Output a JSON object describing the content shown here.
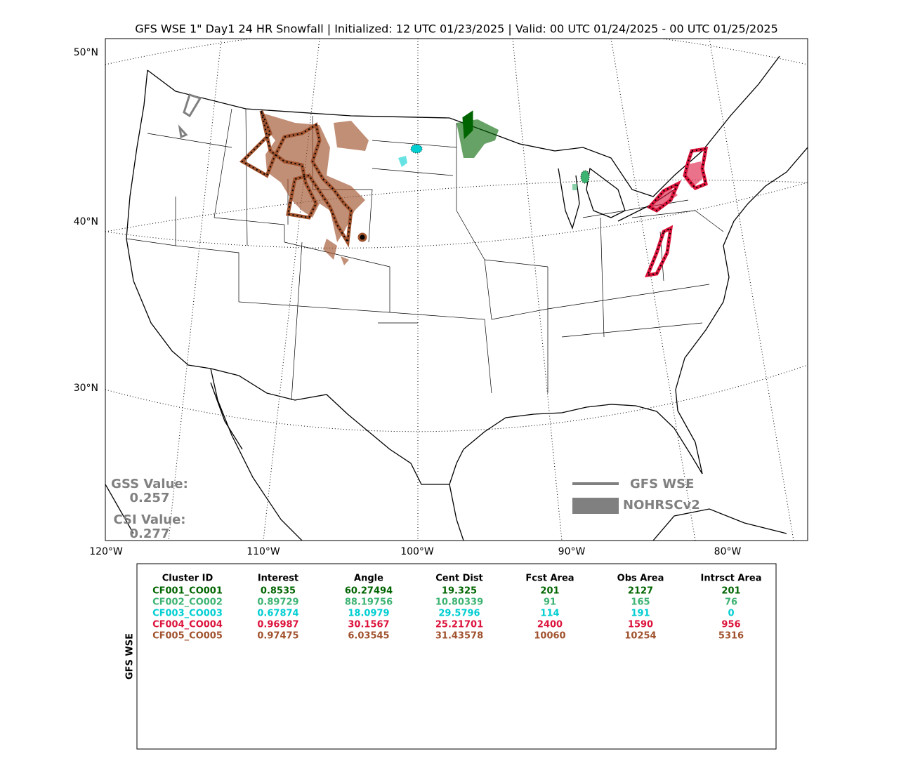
{
  "title": "GFS WSE 1\" Day1 24 HR Snowfall | Initialized: 12 UTC 01/23/2025 | Valid: 00 UTC 01/24/2025 - 00 UTC 01/25/2025",
  "map": {
    "lat_labels": [
      "50°N",
      "40°N",
      "30°N"
    ],
    "lon_labels": [
      "120°W",
      "110°W",
      "100°W",
      "90°W",
      "80°W"
    ],
    "scores": [
      {
        "label": "GSS Value:",
        "value": "0.257"
      },
      {
        "label": "CSI Value:",
        "value": "0.277"
      }
    ],
    "legend": [
      "GFS WSE",
      "NOHRSCv2"
    ]
  },
  "table": {
    "side_label": "GFS WSE",
    "headers": [
      "Cluster ID",
      "Interest",
      "Angle",
      "Cent Dist",
      "Fcst Area",
      "Obs Area",
      "Intrsct Area"
    ],
    "rows": [
      {
        "color": "#006400",
        "cells": [
          "CF001_CO001",
          "0.8535",
          "60.27494",
          "19.325",
          "201",
          "2127",
          "201"
        ]
      },
      {
        "color": "#3cb371",
        "cells": [
          "CF002_CO002",
          "0.89729",
          "88.19756",
          "10.80339",
          "91",
          "165",
          "76"
        ]
      },
      {
        "color": "#00ced1",
        "cells": [
          "CF003_CO003",
          "0.67874",
          "18.0979",
          "29.5796",
          "114",
          "191",
          "0"
        ]
      },
      {
        "color": "#dc143c",
        "cells": [
          "CF004_CO004",
          "0.96987",
          "30.1567",
          "25.21701",
          "2400",
          "1590",
          "956"
        ]
      },
      {
        "color": "#a0522d",
        "cells": [
          "CF005_CO005",
          "0.97475",
          "6.03545",
          "31.43578",
          "10060",
          "10254",
          "5316"
        ]
      }
    ]
  }
}
